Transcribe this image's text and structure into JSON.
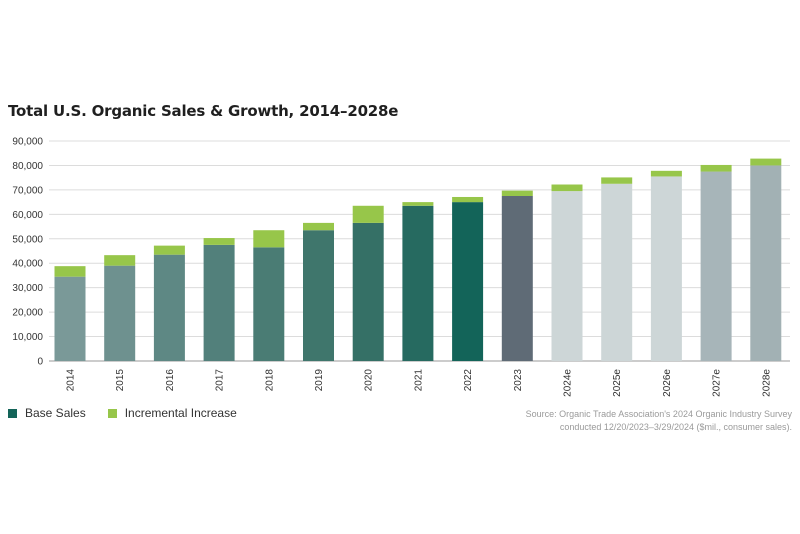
{
  "chart_data": {
    "type": "bar",
    "stacked": true,
    "title": "Total U.S. Organic Sales & Growth, 2014–2028e",
    "categories": [
      "2014",
      "2015",
      "2016",
      "2017",
      "2018",
      "2019",
      "2020",
      "2021",
      "2022",
      "2023",
      "2024e",
      "2025e",
      "2026e",
      "2027e",
      "2028e"
    ],
    "series": [
      {
        "name": "Base Sales",
        "values": [
          34500,
          39000,
          43500,
          47500,
          46500,
          53500,
          56500,
          63500,
          65000,
          67500,
          69500,
          72500,
          75500,
          77500,
          80000
        ]
      },
      {
        "name": "Incremental Increase",
        "values": [
          4300,
          4300,
          3700,
          2800,
          7000,
          3000,
          7000,
          1500,
          2100,
          2200,
          2700,
          2600,
          2300,
          2700,
          2800
        ]
      }
    ],
    "base_colors": [
      "#7a9998",
      "#6e918f",
      "#5e8884",
      "#52807b",
      "#4a7c74",
      "#3f766c",
      "#357066",
      "#266a60",
      "#136459",
      "#5f6b76",
      "#cdd6d7",
      "#cdd6d7",
      "#cdd6d7",
      "#a7b5b9",
      "#a2b1b4"
    ],
    "increment_color": "#97c64a",
    "ylim": [
      0,
      90000
    ],
    "yticks": [
      "0",
      "10,000",
      "20,000",
      "30,000",
      "40,000",
      "50,000",
      "60,000",
      "70,000",
      "80,000",
      "90,000"
    ],
    "ytick_values": [
      0,
      10000,
      20000,
      30000,
      40000,
      50000,
      60000,
      70000,
      80000,
      90000
    ],
    "grid": true,
    "legend_position": "bottom-left"
  },
  "legend": {
    "base_label": "Base Sales",
    "base_color": "#136459",
    "increment_label": "Incremental Increase",
    "increment_color": "#97c64a"
  },
  "source": {
    "line1": "Source: Organic Trade Association's 2024 Organic Industry Survey",
    "line2": "conducted 12/20/2023–3/29/2024 ($mil., consumer sales)."
  }
}
